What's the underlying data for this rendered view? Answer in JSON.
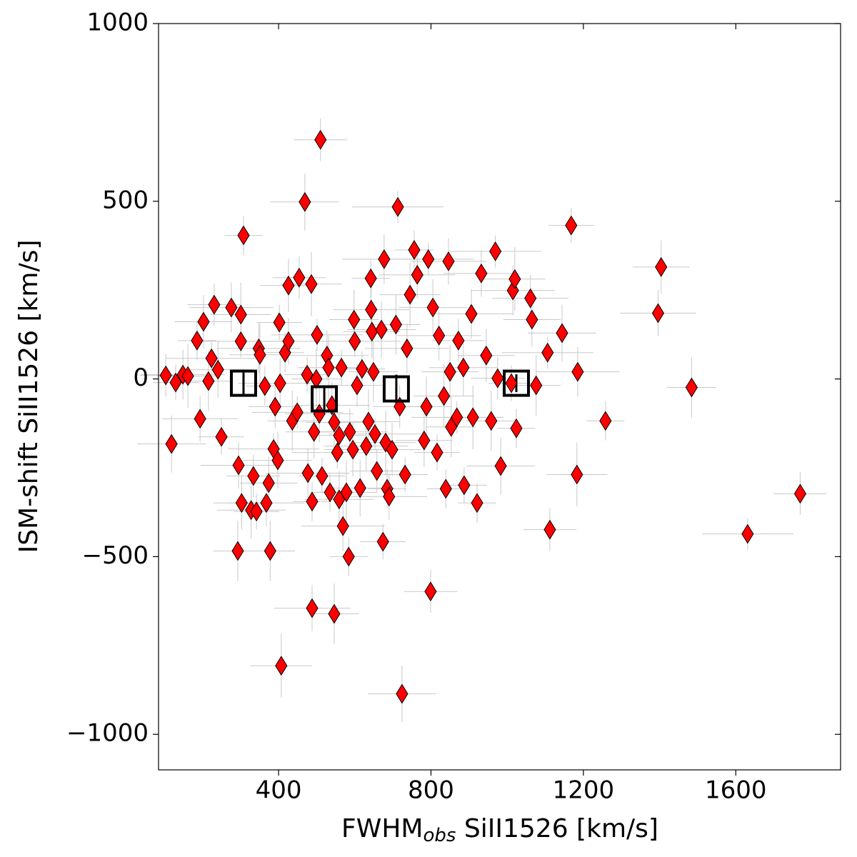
{
  "chart_data": {
    "type": "scatter",
    "xlabel": {
      "base": "FWHM",
      "sub": "obs",
      "rest": " SiII1526 [km/s]"
    },
    "ylabel": "ISM-shift SiII1526 [km/s]",
    "xlim": [
      85,
      1875
    ],
    "ylim": [
      -1100,
      1000
    ],
    "xticks": [
      400,
      800,
      1200,
      1600
    ],
    "yticks": [
      {
        "value": -1000,
        "label": "−1000"
      },
      {
        "value": -500,
        "label": "−500"
      },
      0,
      500,
      1000
    ],
    "series": [
      {
        "marker": "diamond",
        "color": "#ff0000",
        "errorcolor": "#c8c8c8",
        "x": [
          104,
          119,
          130,
          149,
          162,
          186,
          194,
          203,
          216,
          224,
          231,
          241,
          250,
          276,
          301,
          308,
          295,
          303,
          293,
          301,
          334,
          328,
          342,
          348,
          351,
          364,
          368,
          374,
          378,
          387,
          391,
          398,
          402,
          404,
          407,
          417,
          426,
          426,
          436,
          449,
          454,
          469,
          475,
          477,
          486,
          488,
          488,
          493,
          499,
          501,
          510,
          507,
          514,
          527,
          531,
          535,
          540,
          546,
          546,
          554,
          559,
          559,
          565,
          569,
          578,
          584,
          587,
          595,
          598,
          600,
          606,
          614,
          619,
          630,
          636,
          642,
          643,
          645,
          649,
          653,
          658,
          670,
          674,
          677,
          681,
          685,
          690,
          698,
          708,
          713,
          718,
          724,
          732,
          737,
          745,
          756,
          764,
          782,
          788,
          793,
          799,
          805,
          816,
          821,
          834,
          839,
          846,
          850,
          853,
          868,
          872,
          885,
          887,
          906,
          910,
          921,
          932,
          945,
          958,
          969,
          975,
          983,
          1011,
          1015,
          1020,
          1024,
          1061,
          1065,
          1076,
          1106,
          1112,
          1144,
          1168,
          1185,
          1183,
          1258,
          1396,
          1404,
          1484,
          1631,
          1769
        ],
        "values": [
          10,
          -183,
          -10,
          12,
          8,
          108,
          -112,
          161,
          -6,
          58,
          209,
          26,
          -163,
          201,
          181,
          404,
          -243,
          -349,
          -484,
          106,
          -273,
          -369,
          -373,
          86,
          68,
          -20,
          -349,
          -293,
          -484,
          -197,
          -78,
          -229,
          159,
          -12,
          -807,
          74,
          106,
          263,
          -118,
          -94,
          285,
          498,
          12,
          -265,
          267,
          -345,
          -645,
          -149,
          0,
          124,
          673,
          -98,
          -273,
          66,
          32,
          -319,
          -74,
          -122,
          -661,
          -207,
          -159,
          -339,
          32,
          -414,
          -319,
          -500,
          -149,
          -199,
          167,
          106,
          -18,
          -307,
          28,
          -189,
          -120,
          283,
          195,
          133,
          20,
          -155,
          -259,
          139,
          -458,
          337,
          -179,
          -309,
          -331,
          -199,
          153,
          484,
          -78,
          -886,
          -269,
          86,
          237,
          363,
          293,
          -173,
          -78,
          337,
          -598,
          201,
          -207,
          122,
          -48,
          -309,
          331,
          20,
          -135,
          -108,
          108,
          32,
          -299,
          183,
          -108,
          -349,
          297,
          66,
          -118,
          359,
          2,
          -245,
          -12,
          249,
          281,
          -139,
          227,
          167,
          -18,
          74,
          -424,
          129,
          432,
          20,
          -269,
          -118,
          185,
          315,
          -24,
          -436,
          -323
        ],
        "xerr": [
          70,
          90,
          60,
          110,
          80,
          50,
          100,
          75,
          65,
          120,
          70,
          90,
          60,
          110,
          80,
          50,
          100,
          75,
          65,
          120,
          70,
          90,
          60,
          110,
          80,
          50,
          100,
          75,
          65,
          120,
          70,
          90,
          60,
          110,
          80,
          50,
          100,
          75,
          65,
          120,
          70,
          90,
          60,
          110,
          80,
          50,
          100,
          75,
          65,
          120,
          70,
          90,
          60,
          110,
          80,
          50,
          100,
          75,
          65,
          120,
          70,
          90,
          60,
          110,
          80,
          50,
          100,
          75,
          65,
          120,
          70,
          90,
          60,
          110,
          80,
          50,
          100,
          75,
          65,
          120,
          70,
          90,
          60,
          110,
          80,
          50,
          100,
          75,
          65,
          120,
          70,
          90,
          60,
          110,
          80,
          50,
          100,
          75,
          65,
          120,
          70,
          90,
          60,
          110,
          80,
          50,
          100,
          75,
          65,
          120,
          70,
          90,
          60,
          110,
          80,
          50,
          100,
          75,
          65,
          120,
          70,
          90,
          60,
          110,
          80,
          50,
          100,
          75,
          65,
          120,
          70,
          90,
          60,
          110,
          80,
          50,
          100,
          75,
          65,
          120,
          70
        ],
        "yerr": [
          60,
          80,
          50,
          70,
          90,
          55,
          65,
          75,
          85,
          45,
          60,
          80,
          50,
          70,
          90,
          55,
          65,
          75,
          85,
          45,
          60,
          80,
          50,
          70,
          90,
          55,
          65,
          75,
          85,
          45,
          60,
          80,
          50,
          70,
          90,
          55,
          65,
          75,
          85,
          45,
          60,
          80,
          50,
          70,
          90,
          55,
          65,
          75,
          85,
          45,
          60,
          80,
          50,
          70,
          90,
          55,
          65,
          75,
          85,
          45,
          60,
          80,
          50,
          70,
          90,
          55,
          65,
          75,
          85,
          45,
          60,
          80,
          50,
          70,
          90,
          55,
          65,
          75,
          85,
          45,
          60,
          80,
          50,
          70,
          90,
          55,
          65,
          75,
          85,
          45,
          60,
          80,
          50,
          70,
          90,
          55,
          65,
          75,
          85,
          45,
          60,
          80,
          50,
          70,
          90,
          55,
          65,
          75,
          85,
          45,
          60,
          80,
          50,
          70,
          90,
          55,
          65,
          75,
          85,
          45,
          60,
          80,
          50,
          70,
          90,
          55,
          65,
          75,
          85,
          45,
          60,
          80,
          50,
          70,
          90,
          55,
          65,
          75,
          85,
          45,
          60
        ]
      },
      {
        "marker": "square",
        "color": "#000000",
        "errorcolor": "#000000",
        "x": [
          308,
          520,
          709,
          1024
        ],
        "values": [
          -12,
          -56,
          -28,
          -12
        ],
        "yerr": [
          30,
          30,
          40,
          25
        ]
      }
    ]
  }
}
